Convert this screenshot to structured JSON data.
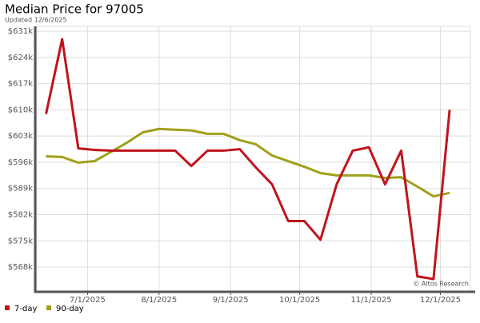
{
  "chart_data": {
    "type": "line",
    "title": "Median Price for 97005",
    "subtitle": "Updated 12/6/2025",
    "annotation": "© Altos Research",
    "x": [
      "6/13/2025",
      "6/20/2025",
      "6/27/2025",
      "7/4/2025",
      "7/11/2025",
      "7/18/2025",
      "7/25/2025",
      "8/1/2025",
      "8/8/2025",
      "8/15/2025",
      "8/22/2025",
      "8/29/2025",
      "9/5/2025",
      "9/12/2025",
      "9/19/2025",
      "9/26/2025",
      "10/3/2025",
      "10/10/2025",
      "10/17/2025",
      "10/24/2025",
      "10/31/2025",
      "11/7/2025",
      "11/14/2025",
      "11/21/2025",
      "11/28/2025",
      "12/5/2025"
    ],
    "series": [
      {
        "name": "7-day",
        "color": "#c0141c",
        "values": [
          608900,
          628900,
          599700,
          599300,
          599100,
          599100,
          599100,
          599100,
          599100,
          595000,
          599100,
          599100,
          599500,
          594600,
          590100,
          580300,
          580300,
          575300,
          590100,
          599100,
          600000,
          590100,
          599100,
          565500,
          564800,
          610000
        ]
      },
      {
        "name": "90-day",
        "color": "#a0a01a",
        "values": [
          597600,
          597400,
          595900,
          596300,
          598700,
          601200,
          604000,
          604900,
          604700,
          604500,
          603600,
          603600,
          601900,
          600800,
          597800,
          596300,
          594800,
          593100,
          592500,
          592500,
          592500,
          591800,
          592000,
          589500,
          586900,
          587800
        ]
      }
    ],
    "xlim": [
      "6/9/2025",
      "12/14/2025"
    ],
    "xticks": [
      "7/1/2025",
      "8/1/2025",
      "9/1/2025",
      "10/1/2025",
      "11/1/2025",
      "12/1/2025"
    ],
    "ylim": [
      561600,
      632300
    ],
    "yticks": [
      {
        "value": 631000,
        "label": "$631k"
      },
      {
        "value": 624000,
        "label": "$624k"
      },
      {
        "value": 617000,
        "label": "$617k"
      },
      {
        "value": 610000,
        "label": "$610k"
      },
      {
        "value": 603000,
        "label": "$603k"
      },
      {
        "value": 596000,
        "label": "$596k"
      },
      {
        "value": 589000,
        "label": "$589k"
      },
      {
        "value": 582000,
        "label": "$582k"
      },
      {
        "value": 575000,
        "label": "$575k"
      },
      {
        "value": 568000,
        "label": "$568k"
      }
    ],
    "grid": true
  }
}
